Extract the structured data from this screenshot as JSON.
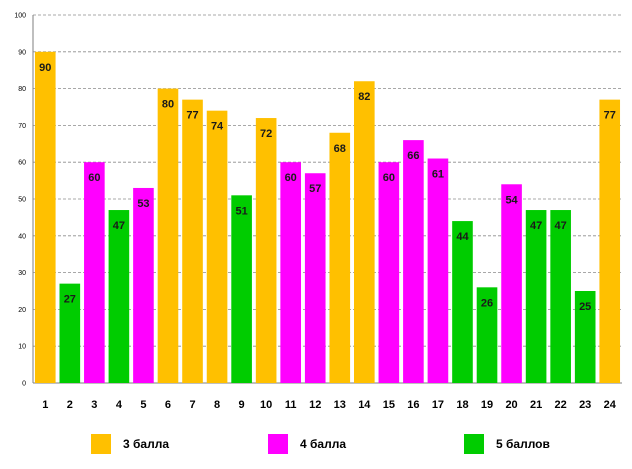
{
  "chart_data": {
    "type": "bar",
    "title": "",
    "xlabel": "",
    "ylabel": "",
    "ylim": [
      0,
      100
    ],
    "yticks": [
      0,
      10,
      20,
      30,
      40,
      50,
      60,
      70,
      80,
      90,
      100
    ],
    "grid": true,
    "categories": [
      "1",
      "2",
      "3",
      "4",
      "5",
      "6",
      "7",
      "8",
      "9",
      "10",
      "11",
      "12",
      "13",
      "14",
      "15",
      "16",
      "17",
      "18",
      "19",
      "20",
      "21",
      "22",
      "23",
      "24"
    ],
    "values": [
      90,
      27,
      60,
      47,
      53,
      80,
      77,
      74,
      51,
      72,
      60,
      57,
      68,
      82,
      60,
      66,
      61,
      44,
      26,
      54,
      47,
      47,
      25,
      77
    ],
    "groups": [
      "3",
      "5",
      "4",
      "5",
      "4",
      "3",
      "3",
      "3",
      "5",
      "3",
      "4",
      "4",
      "3",
      "3",
      "4",
      "4",
      "4",
      "5",
      "5",
      "4",
      "5",
      "5",
      "5",
      "3"
    ],
    "legend": [
      {
        "key": "3",
        "label": "3 балла",
        "color": "#FFC000"
      },
      {
        "key": "4",
        "label": "4 балла",
        "color": "#FF00FF"
      },
      {
        "key": "5",
        "label": "5 баллов",
        "color": "#00CC00"
      }
    ],
    "legend_position": "bottom"
  }
}
